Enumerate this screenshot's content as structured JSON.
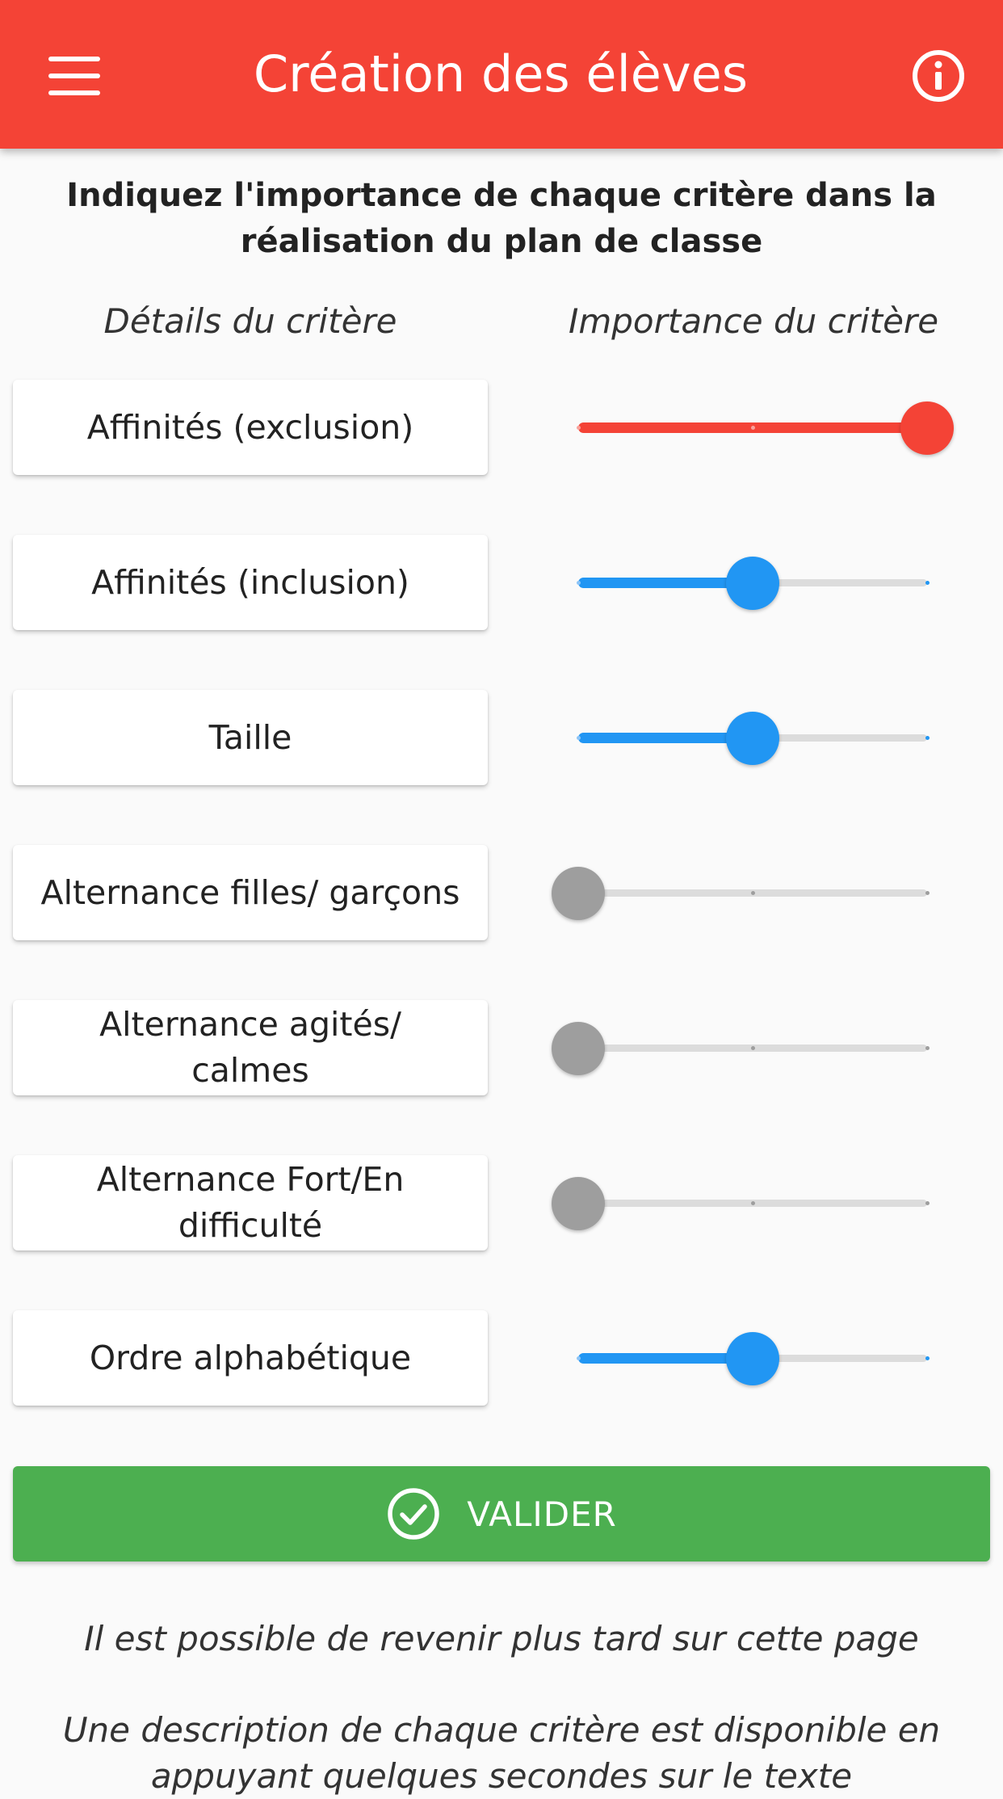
{
  "appbar": {
    "title": "Création des élèves",
    "background": "#f44336",
    "menu_icon": "hamburger-menu-icon",
    "info_icon": "info-circle-icon"
  },
  "intro": "Indiquez l'importance de chaque critère dans la réalisation du plan de classe",
  "columns": {
    "left": "Détails du critère",
    "right": "Importance du critère"
  },
  "criteria": [
    {
      "label": "Affinités (exclusion)",
      "importance": 1.0,
      "color": "#f44336"
    },
    {
      "label": "Affinités (inclusion)",
      "importance": 0.5,
      "color": "#2196f3"
    },
    {
      "label": "Taille",
      "importance": 0.5,
      "color": "#2196f3"
    },
    {
      "label": "Alternance filles/ garçons",
      "importance": 0.0,
      "color": "#9e9e9e"
    },
    {
      "label": "Alternance agités/ calmes",
      "importance": 0.0,
      "color": "#9e9e9e"
    },
    {
      "label": "Alternance Fort/En difficulté",
      "importance": 0.0,
      "color": "#9e9e9e"
    },
    {
      "label": "Ordre alphabétique",
      "importance": 0.5,
      "color": "#2196f3"
    }
  ],
  "validate": {
    "label": "VALIDER",
    "icon": "check-circle-icon",
    "background": "#4caf50"
  },
  "footer": {
    "note1": "Il est possible de revenir plus tard sur cette page",
    "note2": "Une description de chaque critère est disponible en appuyant quelques secondes sur le texte"
  }
}
